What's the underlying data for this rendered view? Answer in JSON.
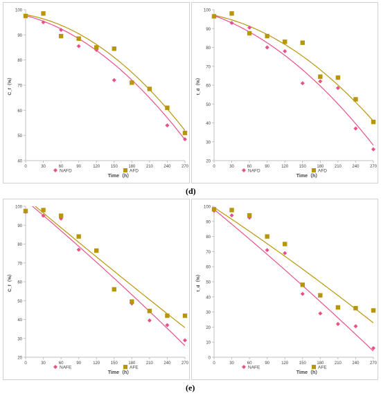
{
  "captions": [
    "(d)",
    "(e)"
  ],
  "colors": {
    "nafd": "#e8508a",
    "afd": "#b8960c",
    "axis": "#bfbfbf"
  },
  "chart_data": [
    {
      "type": "scatter",
      "xlabel": "Time（h）",
      "ylabel": "C_f（%）",
      "ylim": [
        40,
        100
      ],
      "yticks": [
        40,
        50,
        60,
        70,
        80,
        90,
        100
      ],
      "xlim": [
        0,
        270
      ],
      "xticks": [
        0,
        30,
        60,
        90,
        120,
        150,
        180,
        210,
        240,
        270
      ],
      "legend_position": "bottom",
      "series": [
        {
          "name": "NAFD",
          "color": "#e8508a",
          "marker": "diamond",
          "x": [
            0,
            30,
            60,
            90,
            120,
            150,
            180,
            210,
            240,
            270
          ],
          "y": [
            97.5,
            95,
            92,
            85.5,
            84,
            72,
            71,
            68.5,
            54,
            48.5
          ]
        },
        {
          "name": "AFD",
          "color": "#b8960c",
          "marker": "square",
          "x": [
            0,
            30,
            60,
            90,
            120,
            150,
            180,
            210,
            240,
            270
          ],
          "y": [
            97.5,
            98.5,
            89.5,
            88.5,
            85,
            84.5,
            71,
            68.5,
            61,
            51
          ]
        }
      ],
      "trendlines": [
        {
          "color": "#e8508a",
          "x": [
            0,
            90,
            180,
            270
          ],
          "y": [
            97.5,
            89,
            71.5,
            48.5
          ]
        },
        {
          "color": "#b8960c",
          "x": [
            0,
            90,
            180,
            270
          ],
          "y": [
            98,
            90.5,
            75,
            52
          ]
        }
      ]
    },
    {
      "type": "scatter",
      "xlabel": "Time（h）",
      "ylabel": "t_d（%）",
      "ylim": [
        20,
        100
      ],
      "yticks": [
        20,
        30,
        40,
        50,
        60,
        70,
        80,
        90,
        100
      ],
      "xlim": [
        0,
        270
      ],
      "xticks": [
        0,
        30,
        60,
        90,
        120,
        150,
        180,
        210,
        240,
        270
      ],
      "legend_position": "bottom",
      "series": [
        {
          "name": "NAFD",
          "color": "#e8508a",
          "marker": "diamond",
          "x": [
            0,
            30,
            60,
            90,
            120,
            150,
            180,
            210,
            240,
            270
          ],
          "y": [
            96.5,
            93,
            90.5,
            80,
            78,
            61,
            62,
            58.5,
            37,
            26
          ]
        },
        {
          "name": "AFD",
          "color": "#b8960c",
          "marker": "square",
          "x": [
            0,
            30,
            60,
            90,
            120,
            150,
            180,
            210,
            240,
            270
          ],
          "y": [
            96.5,
            98,
            87.5,
            86,
            83,
            82.5,
            64.5,
            64,
            52.5,
            40.5
          ]
        }
      ],
      "trendlines": [
        {
          "color": "#e8508a",
          "x": [
            0,
            90,
            180,
            270
          ],
          "y": [
            97,
            82,
            60,
            28
          ]
        },
        {
          "color": "#b8960c",
          "x": [
            0,
            90,
            180,
            270
          ],
          "y": [
            97,
            87,
            68,
            41
          ]
        }
      ]
    },
    {
      "type": "scatter",
      "xlabel": "Time（h）",
      "ylabel": "C_f（%）",
      "ylim": [
        20,
        100
      ],
      "yticks": [
        20,
        30,
        40,
        50,
        60,
        70,
        80,
        90,
        100
      ],
      "xlim": [
        0,
        270
      ],
      "xticks": [
        0,
        30,
        60,
        90,
        120,
        150,
        180,
        210,
        240,
        270
      ],
      "legend_position": "bottom",
      "series": [
        {
          "name": "NAFE",
          "color": "#e8508a",
          "marker": "diamond",
          "x": [
            0,
            30,
            60,
            90,
            120,
            150,
            180,
            210,
            240,
            270
          ],
          "y": [
            97,
            95,
            93.5,
            77,
            76.5,
            56,
            48.5,
            39.5,
            37,
            29
          ]
        },
        {
          "name": "AFE",
          "color": "#b8960c",
          "marker": "square",
          "x": [
            0,
            30,
            60,
            90,
            120,
            150,
            180,
            210,
            240,
            270
          ],
          "y": [
            97.5,
            98,
            95,
            84,
            76.5,
            56,
            49.5,
            44.5,
            42,
            42
          ]
        }
      ],
      "trendlines": [
        {
          "color": "#e8508a",
          "x": [
            10,
            90,
            180,
            270
          ],
          "y": [
            100,
            80,
            52,
            26.5
          ]
        },
        {
          "color": "#b8960c",
          "x": [
            15,
            90,
            180,
            270
          ],
          "y": [
            100,
            82,
            57,
            36
          ]
        }
      ]
    },
    {
      "type": "scatter",
      "xlabel": "Time（h）",
      "ylabel": "t_d（%）",
      "ylim": [
        0,
        100
      ],
      "yticks": [
        0,
        10,
        20,
        30,
        40,
        50,
        60,
        70,
        80,
        90,
        100
      ],
      "xlim": [
        0,
        270
      ],
      "xticks": [
        0,
        30,
        60,
        90,
        120,
        150,
        180,
        210,
        240,
        270
      ],
      "legend_position": "bottom",
      "series": [
        {
          "name": "NAFE",
          "color": "#e8508a",
          "marker": "diamond",
          "x": [
            0,
            30,
            60,
            90,
            120,
            150,
            180,
            210,
            240,
            270
          ],
          "y": [
            97,
            94,
            92.5,
            71,
            69,
            42,
            29,
            22,
            20.5,
            6
          ]
        },
        {
          "name": "AFE",
          "color": "#b8960c",
          "marker": "square",
          "x": [
            0,
            30,
            60,
            90,
            120,
            150,
            180,
            210,
            240,
            270
          ],
          "y": [
            98,
            97.5,
            94,
            80,
            75,
            48,
            41,
            33,
            32.5,
            31
          ]
        }
      ],
      "trendlines": [
        {
          "color": "#e8508a",
          "x": [
            0,
            90,
            180,
            270
          ],
          "y": [
            98,
            68,
            37,
            4
          ]
        },
        {
          "color": "#b8960c",
          "x": [
            0,
            90,
            180,
            270
          ],
          "y": [
            99,
            76,
            49,
            23
          ]
        }
      ]
    }
  ]
}
